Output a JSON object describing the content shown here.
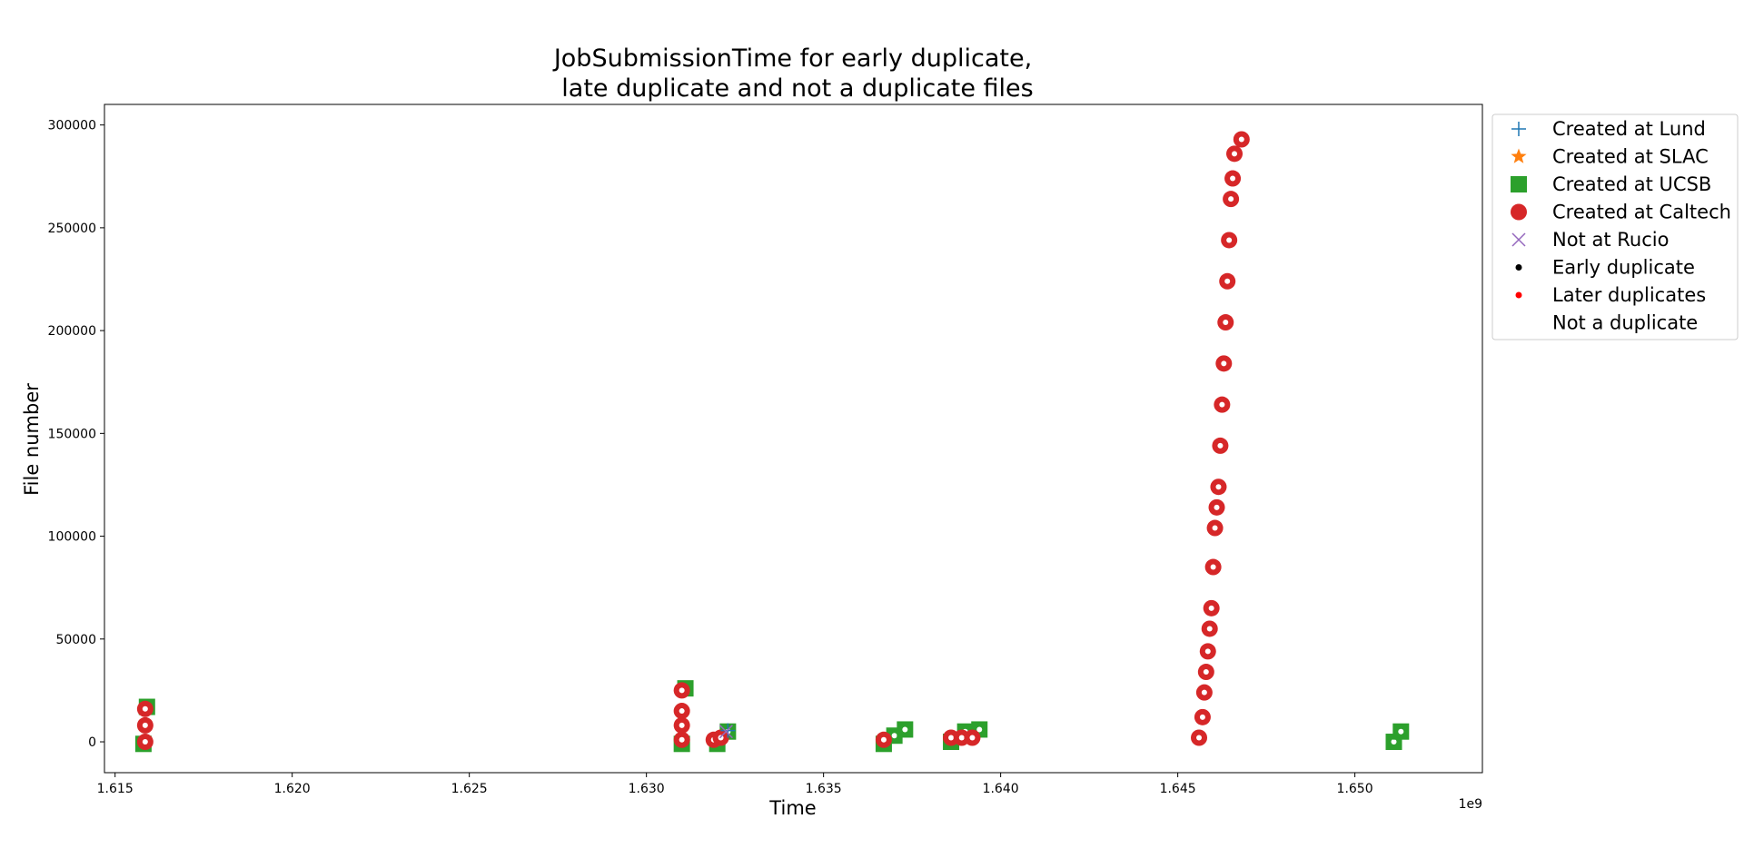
{
  "chart_data": {
    "type": "scatter",
    "title": [
      "JobSubmissionTime for early duplicate,",
      "late duplicate and not a duplicate files"
    ],
    "xlabel": "Time",
    "ylabel": "File number",
    "x_offset_label": "1e9",
    "xlim": [
      1614700000,
      1653600000
    ],
    "ylim": [
      -15000,
      310000
    ],
    "x_ticks": [
      1615000000,
      1620000000,
      1625000000,
      1630000000,
      1635000000,
      1640000000,
      1645000000,
      1650000000
    ],
    "x_tick_labels": [
      "1.615",
      "1.620",
      "1.625",
      "1.630",
      "1.635",
      "1.640",
      "1.645",
      "1.650"
    ],
    "y_ticks": [
      0,
      50000,
      100000,
      150000,
      200000,
      250000,
      300000
    ],
    "y_tick_labels": [
      "0",
      "50000",
      "100000",
      "150000",
      "200000",
      "250000",
      "300000"
    ],
    "grid": false,
    "legend_position": "outside-right",
    "legend": [
      {
        "label": "Created at Lund",
        "marker": "plus",
        "color": "#1f77b4"
      },
      {
        "label": "Created at SLAC",
        "marker": "star",
        "color": "#ff7f0e"
      },
      {
        "label": "Created at UCSB",
        "marker": "square",
        "color": "#2ca02c"
      },
      {
        "label": "Created at Caltech",
        "marker": "circle",
        "color": "#d62728"
      },
      {
        "label": "Not at Rucio",
        "marker": "x",
        "color": "#9467bd"
      },
      {
        "label": "Early duplicate",
        "marker": "dot",
        "color": "#000000"
      },
      {
        "label": "Later duplicates",
        "marker": "dot",
        "color": "#ff0000"
      },
      {
        "label": "Not a duplicate",
        "marker": "dot",
        "color": "#ffffff"
      }
    ],
    "series": [
      {
        "site": "Created at UCSB",
        "x": [
          1615800000,
          1615900000,
          1631000000,
          1631100000,
          1632000000,
          1632300000,
          1636700000,
          1637000000,
          1637300000,
          1638600000,
          1639000000,
          1639400000,
          1651100000,
          1651300000
        ],
        "y": [
          -1000,
          17000,
          -1000,
          26000,
          -1000,
          5000,
          -1000,
          3000,
          6000,
          0,
          5000,
          6000,
          0,
          5000
        ]
      },
      {
        "site": "Created at Caltech",
        "x": [
          1615850000,
          1615850000,
          1615850000,
          1631000000,
          1631000000,
          1631000000,
          1631000000,
          1631900000,
          1632100000,
          1636700000,
          1638600000,
          1638900000,
          1639200000,
          1645600000,
          1645700000,
          1645750000,
          1645800000,
          1645850000,
          1645900000,
          1645950000,
          1646000000,
          1646050000,
          1646100000,
          1646150000,
          1646200000,
          1646250000,
          1646300000,
          1646350000,
          1646400000,
          1646450000,
          1646500000,
          1646550000,
          1646600000,
          1646800000
        ],
        "y": [
          0,
          8000,
          16000,
          1000,
          8000,
          15000,
          25000,
          1000,
          2000,
          1000,
          2000,
          2000,
          2000,
          2000,
          12000,
          24000,
          34000,
          44000,
          55000,
          65000,
          85000,
          104000,
          114000,
          124000,
          144000,
          164000,
          184000,
          204000,
          224000,
          244000,
          264000,
          274000,
          286000,
          293000
        ]
      },
      {
        "site": "Created at Lund",
        "x": [
          1632300000
        ],
        "y": [
          5500
        ]
      },
      {
        "site": "Not at Rucio",
        "x": [
          1632250000
        ],
        "y": [
          5000
        ]
      }
    ]
  }
}
